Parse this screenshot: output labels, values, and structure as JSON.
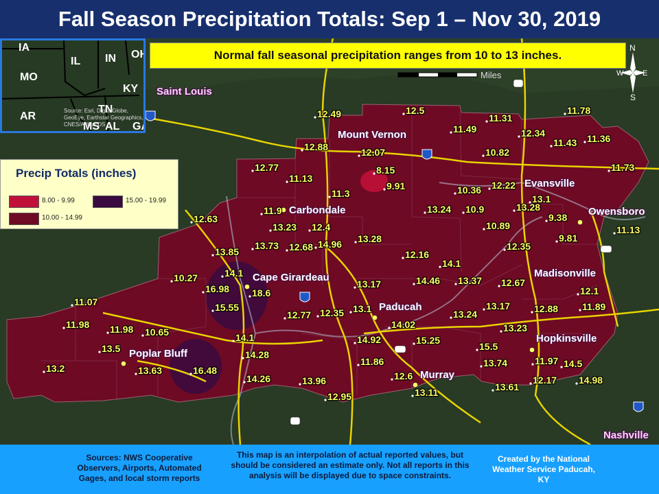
{
  "title": "Fall Season Precipitation Totals: Sep 1 – Nov 30, 2019",
  "banner": "Normal fall seasonal precipitation ranges from 10 to 13 inches.",
  "scale_label": "Miles",
  "compass": {
    "n": "N",
    "s": "S",
    "e": "E",
    "w": "W"
  },
  "inset": {
    "states": [
      "IA",
      "IL",
      "IN",
      "OH",
      "MO",
      "KY",
      "AR",
      "TN",
      "MS",
      "AL",
      "GA"
    ],
    "credit": "Source: Esri, DigitalGlobe, GeoEye, Earthstar Geographics, CNES/Airbus DS"
  },
  "legend": {
    "title": "Precip Totals (inches)",
    "items": [
      {
        "label": "8.00 - 9.99",
        "color": "#c0103a"
      },
      {
        "label": "15.00 - 19.99",
        "color": "#3a0a40"
      },
      {
        "label": "10.00 - 14.99",
        "color": "#6e0a24"
      }
    ]
  },
  "cities": [
    "Saint Louis",
    "Mount Vernon",
    "Evansville",
    "Carbondale",
    "Owensboro",
    "Cape Girardeau",
    "Madisonville",
    "Paducah",
    "Poplar Bluff",
    "Hopkinsville",
    "Murray",
    "Nashville"
  ],
  "values": [
    "12.49",
    "12.5",
    "11.31",
    "11.78",
    "11.49",
    "12.34",
    "11.36",
    "11.43",
    "12.88",
    "12.07",
    "10.82",
    "12.77",
    "11.73",
    "11.13",
    "8.15",
    "9.91",
    "10.36",
    "12.22",
    "11.3",
    "13.24",
    "10.9",
    "13.28",
    "13.1",
    "11.9",
    "9.38",
    "12.63",
    "13.23",
    "12.4",
    "10.89",
    "11.13",
    "13.73",
    "12.68",
    "14.96",
    "13.28",
    "12.35",
    "9.81",
    "13.85",
    "12.16",
    "14.1",
    "14.1",
    "14.46",
    "13.37",
    "12.67",
    "10.27",
    "16.98",
    "18.6",
    "13.17",
    "12.1",
    "11.07",
    "15.55",
    "13.1",
    "13.17",
    "12.88",
    "11.89",
    "12.77",
    "12.35",
    "13.24",
    "11.98",
    "11.98",
    "10.65",
    "14.02",
    "13.23",
    "13.5",
    "14.1",
    "14.92",
    "15.25",
    "15.5",
    "14.28",
    "11.86",
    "13.74",
    "11.97",
    "14.5",
    "13.2",
    "13.63",
    "16.48",
    "14.26",
    "13.96",
    "12.6",
    "12.17",
    "14.98",
    "12.95",
    "13.11",
    "13.61"
  ],
  "footer": {
    "sources": "Sources: NWS Cooperative Observers, Airports, Automated Gages, and local storm reports",
    "disclaimer": "This map is an interpolation of actual reported values, but should be considered an estimate only. Not all reports in this analysis will be displayed due to space constraints.",
    "credit": "Created by the National Weather Service Paducah, KY"
  },
  "colors": {
    "region": "#6e0a24",
    "low": "#c0103a",
    "high": "#3a0a40",
    "roads": "#e8d400",
    "footer": "#18a0ff",
    "title_bar": "#17306d"
  }
}
